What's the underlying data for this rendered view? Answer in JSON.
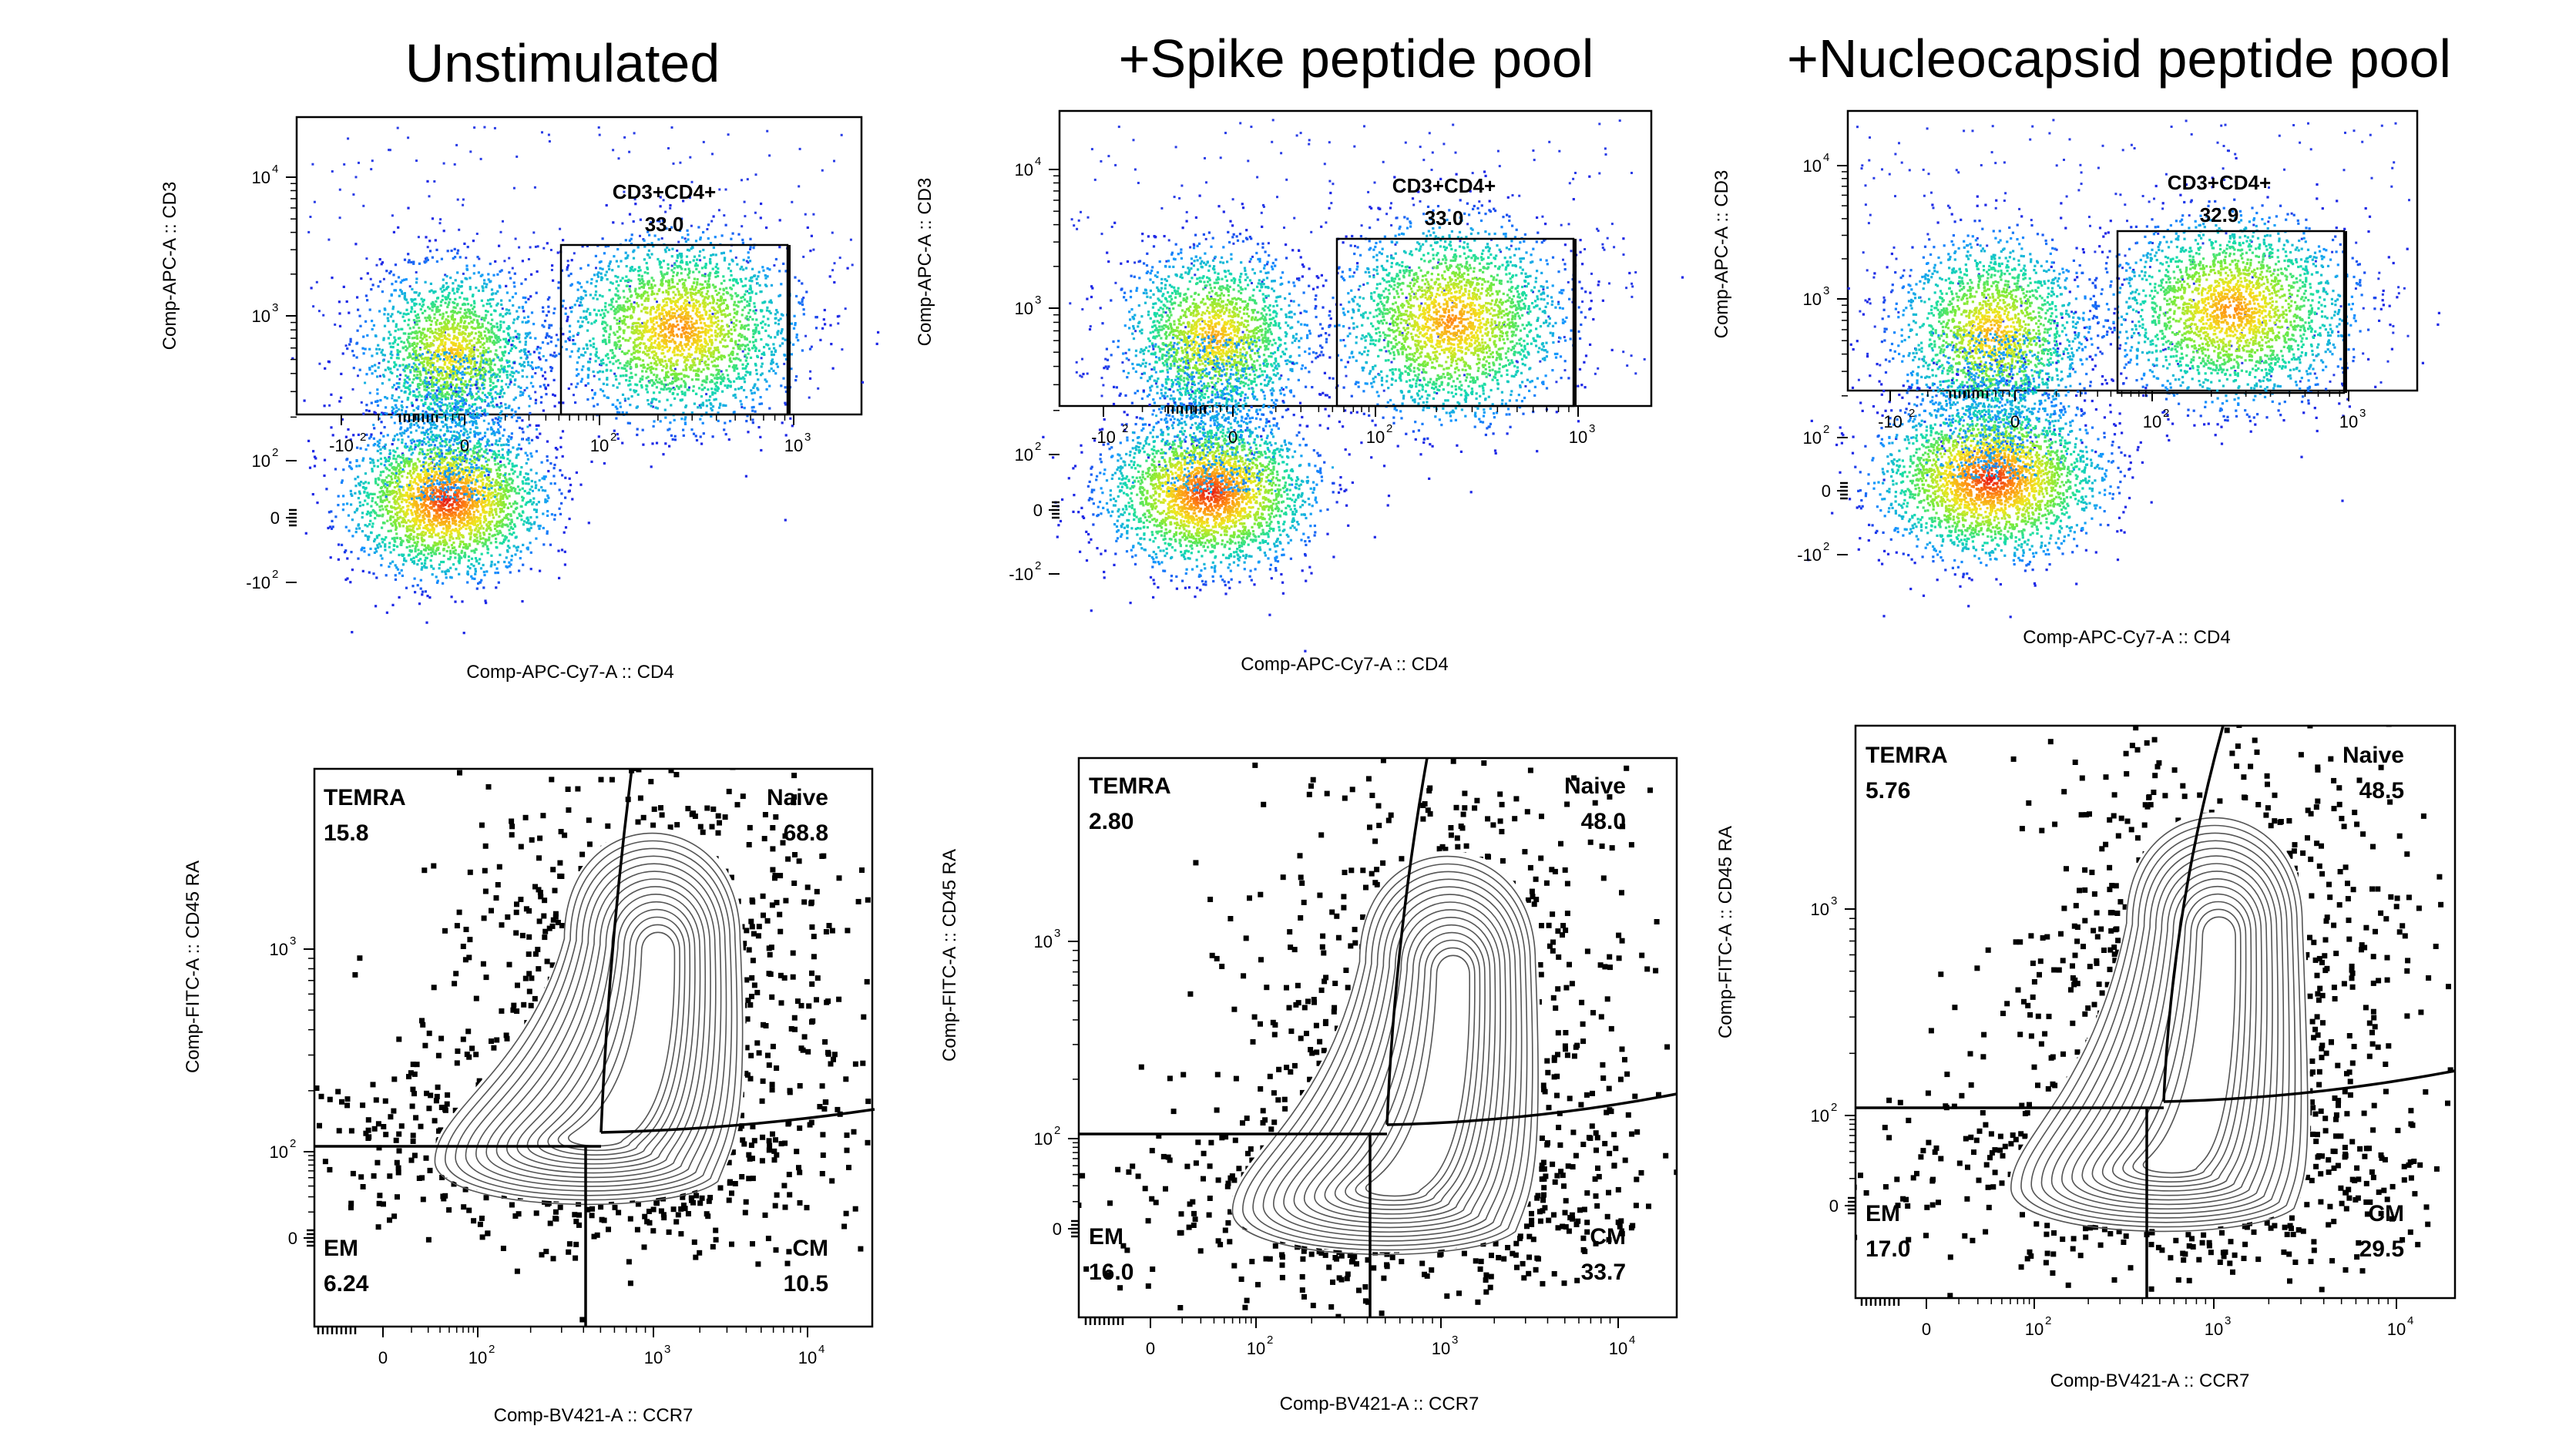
{
  "columns": [
    {
      "title": "Unstimulated"
    },
    {
      "title": "+Spike peptide pool"
    },
    {
      "title": "+Nucleocapsid peptide pool"
    }
  ],
  "chart_data": [
    {
      "type": "scatter",
      "panel": "top-left",
      "xlabel": "Comp-APC-Cy7-A :: CD4",
      "ylabel": "Comp-APC-A :: CD3",
      "x_ticks": [
        "-10",
        "0",
        "10",
        "10"
      ],
      "y_ticks": [
        "10",
        "10",
        "10",
        "0",
        "-10"
      ],
      "exponents": {
        "x": [
          "2",
          "",
          "2",
          "3"
        ],
        "y": [
          "4",
          "3",
          "2",
          "",
          "2"
        ]
      },
      "gate": {
        "name": "CD3+CD4+",
        "percent": "33.0"
      },
      "populations": [
        {
          "cd4": 0,
          "cd3": 500,
          "relative_density": 0.75
        },
        {
          "cd4": 0,
          "cd3": 0,
          "relative_density": 1.0
        },
        {
          "cd4": 300,
          "cd3": 700,
          "relative_density": 0.85
        }
      ]
    },
    {
      "type": "scatter",
      "panel": "top-middle",
      "xlabel": "Comp-APC-Cy7-A :: CD4",
      "ylabel": "Comp-APC-A :: CD3",
      "x_ticks": [
        "-10",
        "0",
        "10",
        "10"
      ],
      "y_ticks": [
        "10",
        "10",
        "10",
        "0",
        "-10"
      ],
      "exponents": {
        "x": [
          "2",
          "",
          "2",
          "3"
        ],
        "y": [
          "4",
          "3",
          "2",
          "",
          "2"
        ]
      },
      "gate": {
        "name": "CD3+CD4+",
        "percent": "33.0"
      },
      "populations": [
        {
          "cd4": 0,
          "cd3": 500,
          "relative_density": 0.8
        },
        {
          "cd4": 0,
          "cd3": 0,
          "relative_density": 1.0
        },
        {
          "cd4": 300,
          "cd3": 800,
          "relative_density": 0.85
        }
      ]
    },
    {
      "type": "scatter",
      "panel": "top-right",
      "xlabel": "Comp-APC-Cy7-A :: CD4",
      "ylabel": "Comp-APC-A :: CD3",
      "x_ticks": [
        "-10",
        "0",
        "10",
        "10"
      ],
      "y_ticks": [
        "10",
        "10",
        "10",
        "0",
        "-10"
      ],
      "exponents": {
        "x": [
          "2",
          "",
          "2",
          "3"
        ],
        "y": [
          "4",
          "3",
          "2",
          "",
          "2"
        ]
      },
      "gate": {
        "name": "CD3+CD4+",
        "percent": "32.9"
      },
      "populations": [
        {
          "cd4": 0,
          "cd3": 500,
          "relative_density": 0.8
        },
        {
          "cd4": 0,
          "cd3": 0,
          "relative_density": 1.0
        },
        {
          "cd4": 300,
          "cd3": 700,
          "relative_density": 0.85
        }
      ]
    },
    {
      "type": "scatter",
      "panel": "bottom-left",
      "xlabel": "Comp-BV421-A :: CCR7",
      "ylabel": "Comp-FITC-A :: CD45 RA",
      "x_ticks": [
        "0",
        "10",
        "10",
        "10"
      ],
      "y_ticks": [
        "10",
        "10",
        "0"
      ],
      "exponents": {
        "x": [
          "",
          "2",
          "3",
          "4"
        ],
        "y": [
          "3",
          "2",
          ""
        ]
      },
      "quadrants": [
        {
          "name": "TEMRA",
          "percent": "15.8"
        },
        {
          "name": "Naive",
          "percent": "68.8"
        },
        {
          "name": "EM",
          "percent": "6.24"
        },
        {
          "name": "CM",
          "percent": "10.5"
        }
      ]
    },
    {
      "type": "scatter",
      "panel": "bottom-middle",
      "xlabel": "Comp-BV421-A :: CCR7",
      "ylabel": "Comp-FITC-A :: CD45 RA",
      "x_ticks": [
        "0",
        "10",
        "10",
        "10"
      ],
      "y_ticks": [
        "10",
        "10",
        "0"
      ],
      "exponents": {
        "x": [
          "",
          "2",
          "3",
          "4"
        ],
        "y": [
          "3",
          "2",
          ""
        ]
      },
      "quadrants": [
        {
          "name": "TEMRA",
          "percent": "2.80"
        },
        {
          "name": "Naive",
          "percent": "48.0"
        },
        {
          "name": "EM",
          "percent": "16.0"
        },
        {
          "name": "CM",
          "percent": "33.7"
        }
      ]
    },
    {
      "type": "scatter",
      "panel": "bottom-right",
      "xlabel": "Comp-BV421-A :: CCR7",
      "ylabel": "Comp-FITC-A :: CD45 RA",
      "x_ticks": [
        "0",
        "10",
        "10",
        "10"
      ],
      "y_ticks": [
        "10",
        "10",
        "0"
      ],
      "exponents": {
        "x": [
          "",
          "2",
          "3",
          "4"
        ],
        "y": [
          "3",
          "2",
          ""
        ]
      },
      "quadrants": [
        {
          "name": "TEMRA",
          "percent": "5.76"
        },
        {
          "name": "Naive",
          "percent": "48.5"
        },
        {
          "name": "EM",
          "percent": "17.0"
        },
        {
          "name": "CM",
          "percent": "29.5"
        }
      ]
    }
  ]
}
